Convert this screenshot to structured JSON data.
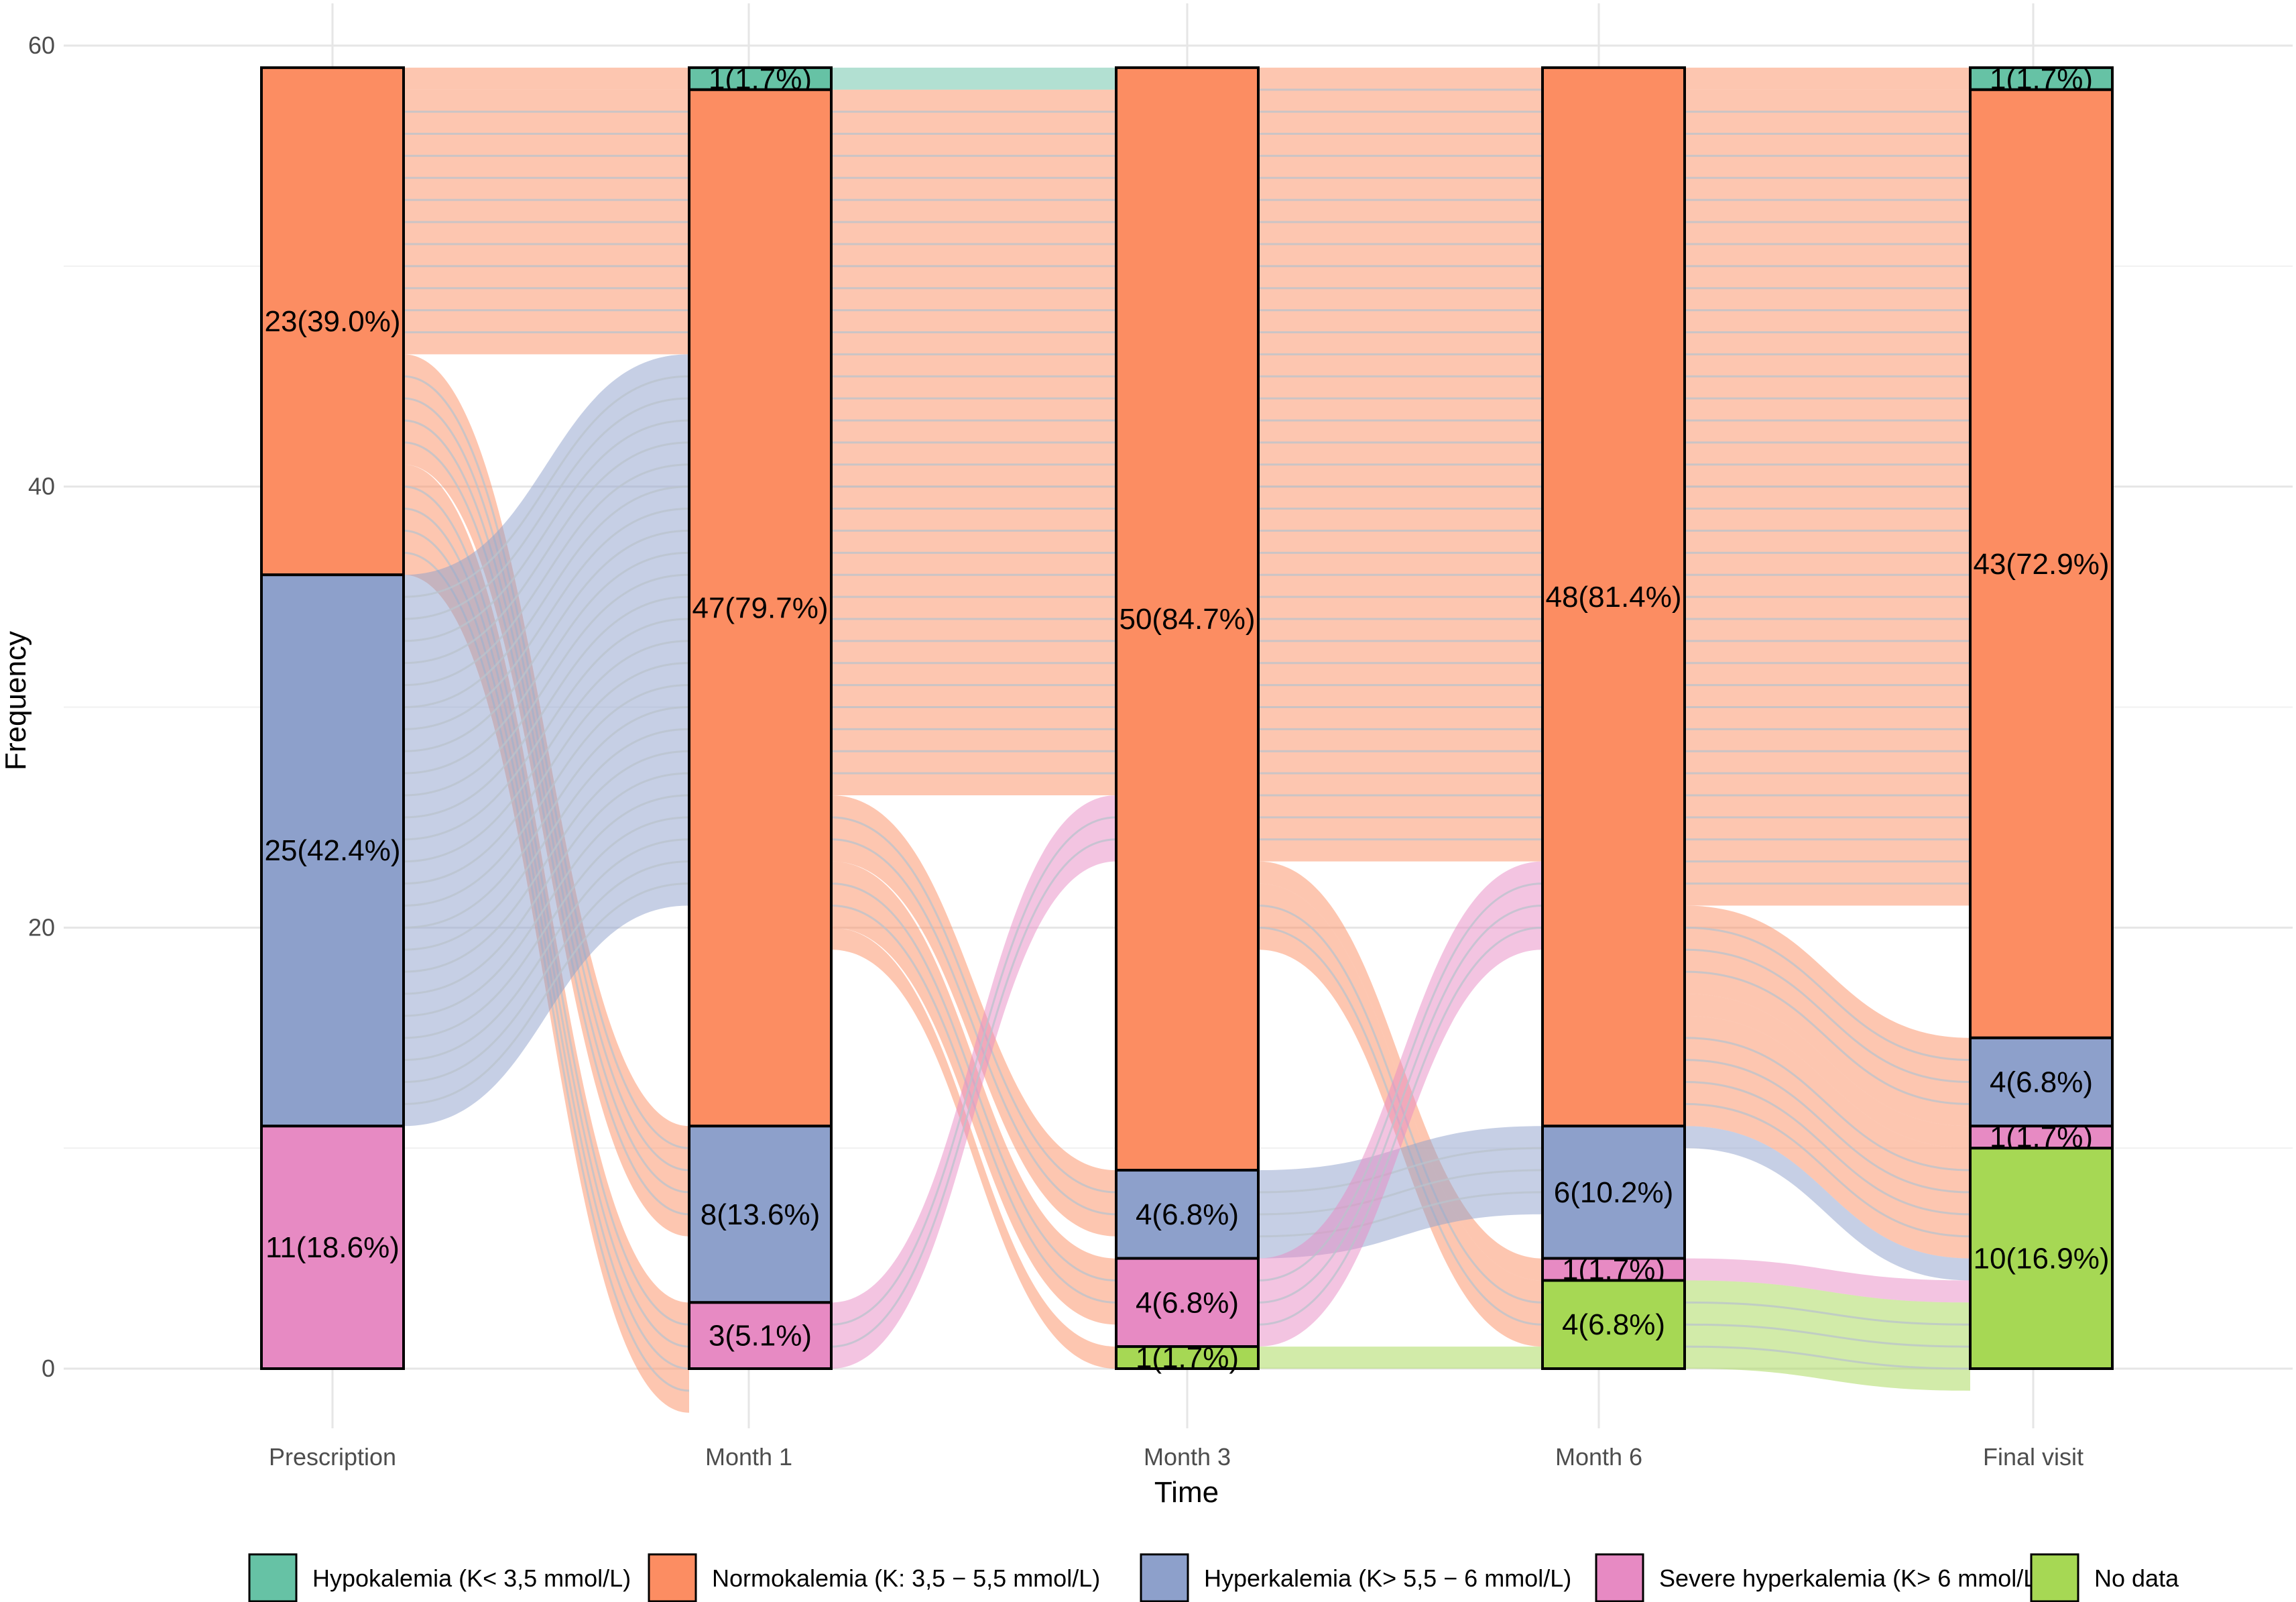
{
  "chart_data": {
    "type": "alluvial",
    "xlabel": "Time",
    "ylabel": "Frequency",
    "ylim": [
      0,
      60
    ],
    "yticks": [
      0,
      20,
      40,
      60
    ],
    "grid": true,
    "legend_position": "bottom",
    "stages": [
      "Prescription",
      "Month 1",
      "Month 3",
      "Month 6",
      "Final visit"
    ],
    "categories": [
      {
        "key": "hypo",
        "name": "Hypokalemia (K< 3,5 mmol/L)",
        "color": "#66C2A5"
      },
      {
        "key": "normo",
        "name": "Normokalemia (K: 3,5 − 5,5  mmol/L)",
        "color": "#FC8D62"
      },
      {
        "key": "hyper",
        "name": "Hyperkalemia (K> 5,5 − 6 mmol/L)",
        "color": "#8DA0CB"
      },
      {
        "key": "severe",
        "name": "Severe hyperkalemia (K> 6 mmol/L)",
        "color": "#E78AC3"
      },
      {
        "key": "nodata",
        "name": "No data",
        "color": "#A6D854"
      }
    ],
    "stacks": [
      [
        {
          "cat": "normo",
          "value": 23,
          "label": "23(39.0%)"
        },
        {
          "cat": "hyper",
          "value": 25,
          "label": "25(42.4%)"
        },
        {
          "cat": "severe",
          "value": 11,
          "label": "11(18.6%)"
        }
      ],
      [
        {
          "cat": "hypo",
          "value": 1,
          "label": "1(1.7%)"
        },
        {
          "cat": "normo",
          "value": 47,
          "label": "47(79.7%)"
        },
        {
          "cat": "hyper",
          "value": 8,
          "label": "8(13.6%)"
        },
        {
          "cat": "severe",
          "value": 3,
          "label": "3(5.1%)"
        }
      ],
      [
        {
          "cat": "normo",
          "value": 50,
          "label": "50(84.7%)"
        },
        {
          "cat": "hyper",
          "value": 4,
          "label": "4(6.8%)"
        },
        {
          "cat": "severe",
          "value": 4,
          "label": "4(6.8%)"
        },
        {
          "cat": "nodata",
          "value": 1,
          "label": "1(1.7%)"
        }
      ],
      [
        {
          "cat": "normo",
          "value": 48,
          "label": "48(81.4%)"
        },
        {
          "cat": "hyper",
          "value": 6,
          "label": "6(10.2%)"
        },
        {
          "cat": "severe",
          "value": 1,
          "label": "1(1.7%)"
        },
        {
          "cat": "nodata",
          "value": 4,
          "label": "4(6.8%)"
        }
      ],
      [
        {
          "cat": "hypo",
          "value": 1,
          "label": "1(1.7%)"
        },
        {
          "cat": "normo",
          "value": 43,
          "label": "43(72.9%)"
        },
        {
          "cat": "hyper",
          "value": 4,
          "label": "4(6.8%)"
        },
        {
          "cat": "severe",
          "value": 1,
          "label": "1(1.7%)"
        },
        {
          "cat": "nodata",
          "value": 10,
          "label": "10(16.9%)"
        }
      ]
    ],
    "flows": [
      [
        {
          "from": "normo",
          "to": "hypo",
          "value": 1
        },
        {
          "from": "normo",
          "to": "normo",
          "value": 12
        },
        {
          "from": "normo",
          "to": "hyper",
          "value": 5
        },
        {
          "from": "normo",
          "to": "severe",
          "value": 5
        },
        {
          "from": "hyper",
          "to": "normo",
          "value": 25
        }
      ],
      [
        {
          "from": "hypo",
          "to": "normo",
          "value": 1
        },
        {
          "from": "normo",
          "to": "normo",
          "value": 32
        },
        {
          "from": "normo",
          "to": "hyper",
          "value": 3
        },
        {
          "from": "normo",
          "to": "severe",
          "value": 3
        },
        {
          "from": "normo",
          "to": "nodata",
          "value": 1
        },
        {
          "from": "severe",
          "to": "normo",
          "value": 3
        }
      ],
      [
        {
          "from": "normo",
          "to": "normo",
          "value": 36
        },
        {
          "from": "normo",
          "to": "severe",
          "value": 1
        },
        {
          "from": "normo",
          "to": "nodata",
          "value": 3
        },
        {
          "from": "hyper",
          "to": "hyper",
          "value": 4
        },
        {
          "from": "severe",
          "to": "normo",
          "value": 4
        },
        {
          "from": "nodata",
          "to": "nodata",
          "value": 1
        }
      ],
      [
        {
          "from": "normo",
          "to": "hypo",
          "value": 1
        },
        {
          "from": "normo",
          "to": "normo",
          "value": 37
        },
        {
          "from": "normo",
          "to": "hyper",
          "value": 4
        },
        {
          "from": "normo",
          "to": "severe",
          "value": 1
        },
        {
          "from": "normo",
          "to": "nodata",
          "value": 5
        },
        {
          "from": "hyper",
          "to": "nodata",
          "value": 1
        },
        {
          "from": "severe",
          "to": "nodata",
          "value": 1
        },
        {
          "from": "nodata",
          "to": "nodata",
          "value": 4
        }
      ]
    ]
  }
}
